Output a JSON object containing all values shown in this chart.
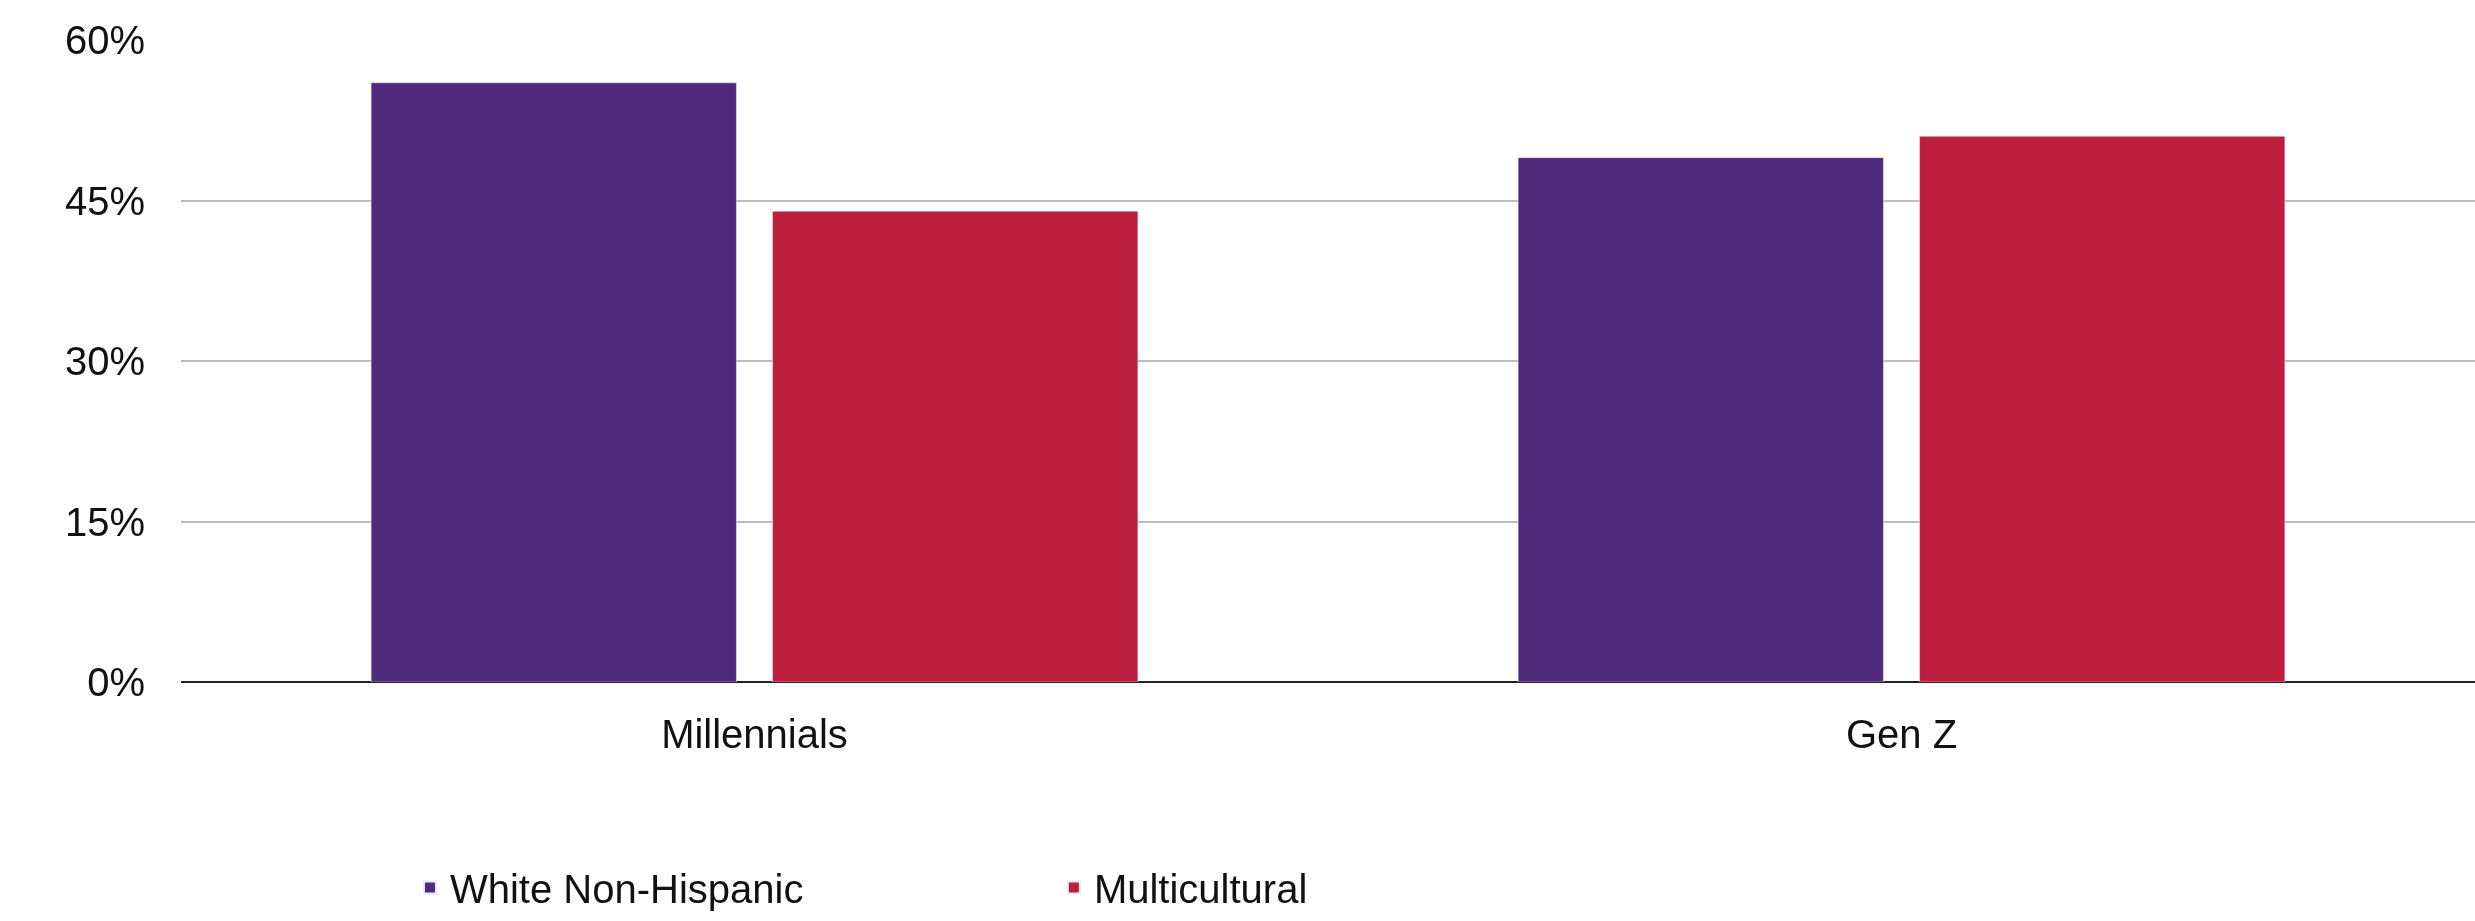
{
  "chart_data": {
    "type": "bar",
    "categories": [
      "Millennials",
      "Gen Z"
    ],
    "series": [
      {
        "name": "White Non-Hispanic",
        "color": "#4f2a7a",
        "values": [
          56,
          49
        ]
      },
      {
        "name": "Multicultural",
        "color": "#be1e3e",
        "values": [
          44,
          51
        ]
      }
    ],
    "ylim": [
      0,
      60
    ],
    "yticks": [
      {
        "value": 0,
        "label": "0%"
      },
      {
        "value": 15,
        "label": "15%"
      },
      {
        "value": 30,
        "label": "30%"
      },
      {
        "value": 45,
        "label": "45%"
      },
      {
        "value": 60,
        "label": "60%"
      }
    ],
    "grid": "y",
    "legend": "bottom"
  }
}
